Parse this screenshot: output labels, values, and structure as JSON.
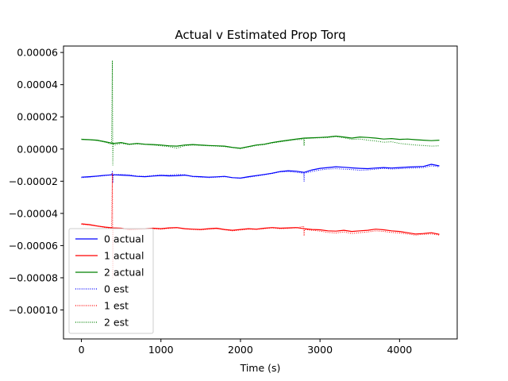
{
  "chart_data": {
    "type": "line",
    "title": "Actual v Estimated Prop Torq",
    "xlabel": "Time (s)",
    "ylabel": "",
    "xlim": [
      -225,
      4725
    ],
    "ylim": [
      -0.000118,
      6.4e-05
    ],
    "x_ticks": [
      0,
      1000,
      2000,
      3000,
      4000
    ],
    "x_tick_labels": [
      "0",
      "1000",
      "2000",
      "3000",
      "4000"
    ],
    "y_ticks": [
      6e-05,
      4e-05,
      2e-05,
      0.0,
      -2e-05,
      -4e-05,
      -6e-05,
      -8e-05,
      -0.0001
    ],
    "y_tick_labels": [
      "0.00006",
      "0.00004",
      "0.00002",
      "0.00000",
      "−0.00002",
      "−0.00004",
      "−0.00006",
      "−0.00008",
      "−0.00010"
    ],
    "grid": false,
    "legend_position": "lower-left",
    "series": [
      {
        "name": "0 actual",
        "color": "#0000ff",
        "style": "solid",
        "x": [
          0,
          100,
          200,
          300,
          400,
          500,
          600,
          700,
          800,
          900,
          1000,
          1100,
          1200,
          1300,
          1400,
          1500,
          1600,
          1700,
          1800,
          1900,
          2000,
          2100,
          2200,
          2300,
          2400,
          2500,
          2600,
          2700,
          2800,
          2900,
          3000,
          3100,
          3200,
          3300,
          3400,
          3500,
          3600,
          3700,
          3800,
          3900,
          4000,
          4100,
          4200,
          4300,
          4400,
          4500
        ],
        "y": [
          -1.75e-05,
          -1.72e-05,
          -1.68e-05,
          -1.63e-05,
          -1.6e-05,
          -1.62e-05,
          -1.65e-05,
          -1.7e-05,
          -1.72e-05,
          -1.68e-05,
          -1.65e-05,
          -1.67e-05,
          -1.66e-05,
          -1.62e-05,
          -1.7e-05,
          -1.72e-05,
          -1.75e-05,
          -1.73e-05,
          -1.7e-05,
          -1.78e-05,
          -1.8e-05,
          -1.72e-05,
          -1.65e-05,
          -1.58e-05,
          -1.5e-05,
          -1.4e-05,
          -1.35e-05,
          -1.38e-05,
          -1.45e-05,
          -1.3e-05,
          -1.2e-05,
          -1.15e-05,
          -1.1e-05,
          -1.13e-05,
          -1.17e-05,
          -1.2e-05,
          -1.22e-05,
          -1.18e-05,
          -1.15e-05,
          -1.18e-05,
          -1.15e-05,
          -1.12e-05,
          -1.1e-05,
          -1.08e-05,
          -9.5e-06,
          -1.05e-05
        ]
      },
      {
        "name": "1 actual",
        "color": "#ff0000",
        "style": "solid",
        "x": [
          0,
          100,
          200,
          300,
          400,
          500,
          600,
          700,
          800,
          900,
          1000,
          1100,
          1200,
          1300,
          1400,
          1500,
          1600,
          1700,
          1800,
          1900,
          2000,
          2100,
          2200,
          2300,
          2400,
          2500,
          2600,
          2700,
          2800,
          2900,
          3000,
          3100,
          3200,
          3300,
          3400,
          3500,
          3600,
          3700,
          3800,
          3900,
          4000,
          4100,
          4200,
          4300,
          4400,
          4500
        ],
        "y": [
          -4.65e-05,
          -4.7e-05,
          -4.78e-05,
          -4.85e-05,
          -4.9e-05,
          -4.92e-05,
          -5e-05,
          -4.98e-05,
          -4.95e-05,
          -4.92e-05,
          -4.95e-05,
          -4.9e-05,
          -4.88e-05,
          -4.95e-05,
          -4.98e-05,
          -5e-05,
          -4.95e-05,
          -4.92e-05,
          -5e-05,
          -5.05e-05,
          -5e-05,
          -4.95e-05,
          -4.98e-05,
          -4.92e-05,
          -4.88e-05,
          -4.92e-05,
          -4.9e-05,
          -4.88e-05,
          -4.95e-05,
          -5e-05,
          -5.02e-05,
          -5.08e-05,
          -5.1e-05,
          -5.05e-05,
          -5.12e-05,
          -5.08e-05,
          -5.05e-05,
          -4.98e-05,
          -5.02e-05,
          -5.08e-05,
          -5.12e-05,
          -5.2e-05,
          -5.28e-05,
          -5.25e-05,
          -5.2e-05,
          -5.3e-05
        ]
      },
      {
        "name": "2 actual",
        "color": "#008000",
        "style": "solid",
        "x": [
          0,
          100,
          200,
          300,
          400,
          500,
          600,
          700,
          800,
          900,
          1000,
          1100,
          1200,
          1300,
          1400,
          1500,
          1600,
          1700,
          1800,
          1900,
          2000,
          2100,
          2200,
          2300,
          2400,
          2500,
          2600,
          2700,
          2800,
          2900,
          3000,
          3100,
          3200,
          3300,
          3400,
          3500,
          3600,
          3700,
          3800,
          3900,
          4000,
          4100,
          4200,
          4300,
          4400,
          4500
        ],
        "y": [
          6e-06,
          5.8e-06,
          5.5e-06,
          4.5e-06,
          3.5e-06,
          4e-06,
          3e-06,
          3.5e-06,
          3e-06,
          2.8e-06,
          2.5e-06,
          2e-06,
          1.8e-06,
          2.5e-06,
          2.8e-06,
          2.5e-06,
          2.2e-06,
          2e-06,
          1.8e-06,
          1e-06,
          5e-07,
          1.5e-06,
          2.5e-06,
          3e-06,
          4e-06,
          4.8e-06,
          5.5e-06,
          6.2e-06,
          6.8e-06,
          7e-06,
          7.2e-06,
          7.5e-06,
          8e-06,
          7.5e-06,
          6.8e-06,
          7.5e-06,
          7.2e-06,
          6.8e-06,
          6.2e-06,
          6.5e-06,
          6e-06,
          6.2e-06,
          5.8e-06,
          5.5e-06,
          5.2e-06,
          5.5e-06
        ]
      },
      {
        "name": "0 est",
        "color": "#0000ff",
        "style": "dotted",
        "x": [
          0,
          100,
          200,
          300,
          380,
          390,
          395,
          400,
          410,
          500,
          600,
          700,
          800,
          900,
          1000,
          1100,
          1200,
          1300,
          1400,
          1500,
          1600,
          1700,
          1800,
          1900,
          2000,
          2100,
          2200,
          2300,
          2400,
          2500,
          2600,
          2700,
          2795,
          2800,
          2805,
          2900,
          3000,
          3100,
          3200,
          3300,
          3400,
          3500,
          3600,
          3700,
          3800,
          3900,
          4000,
          4100,
          4200,
          4300,
          4400,
          4500
        ],
        "y": [
          -1.78e-05,
          -1.75e-05,
          -1.7e-05,
          -1.65e-05,
          -1.6e-05,
          -1.4e-05,
          -2.1e-05,
          -1.65e-05,
          -1.6e-05,
          -1.58e-05,
          -1.6e-05,
          -1.68e-05,
          -1.7e-05,
          -1.65e-05,
          -1.6e-05,
          -1.62e-05,
          -1.58e-05,
          -1.6e-05,
          -1.72e-05,
          -1.75e-05,
          -1.78e-05,
          -1.75e-05,
          -1.72e-05,
          -1.78e-05,
          -1.82e-05,
          -1.75e-05,
          -1.68e-05,
          -1.6e-05,
          -1.52e-05,
          -1.42e-05,
          -1.4e-05,
          -1.45e-05,
          -1.5e-05,
          -2e-05,
          -1.5e-05,
          -1.4e-05,
          -1.3e-05,
          -1.25e-05,
          -1.22e-05,
          -1.25e-05,
          -1.28e-05,
          -1.32e-05,
          -1.3e-05,
          -1.25e-05,
          -1.2e-05,
          -1.25e-05,
          -1.22e-05,
          -1.2e-05,
          -1.18e-05,
          -1.15e-05,
          -1.05e-05,
          -1.1e-05
        ]
      },
      {
        "name": "1 est",
        "color": "#ff0000",
        "style": "dotted",
        "x": [
          0,
          100,
          200,
          300,
          380,
          390,
          395,
          400,
          410,
          500,
          600,
          700,
          800,
          900,
          1000,
          1100,
          1200,
          1300,
          1400,
          1500,
          1600,
          1700,
          1800,
          1900,
          2000,
          2100,
          2200,
          2300,
          2400,
          2500,
          2600,
          2700,
          2795,
          2800,
          2805,
          2900,
          3000,
          3100,
          3200,
          3300,
          3400,
          3500,
          3600,
          3700,
          3800,
          3900,
          4000,
          4100,
          4200,
          4300,
          4400,
          4500
        ],
        "y": [
          -4.68e-05,
          -4.72e-05,
          -4.8e-05,
          -4.88e-05,
          -4.92e-05,
          -1.5e-05,
          -8e-05,
          -4.92e-05,
          -4.95e-05,
          -4.95e-05,
          -5.02e-05,
          -5e-05,
          -4.98e-05,
          -4.95e-05,
          -4.98e-05,
          -4.93e-05,
          -4.9e-05,
          -4.97e-05,
          -5e-05,
          -5.02e-05,
          -4.98e-05,
          -4.95e-05,
          -5.02e-05,
          -5.08e-05,
          -5.03e-05,
          -4.98e-05,
          -5e-05,
          -4.95e-05,
          -4.9e-05,
          -4.95e-05,
          -4.93e-05,
          -4.9e-05,
          -4.8e-05,
          -5.4e-05,
          -5e-05,
          -5.05e-05,
          -5.1e-05,
          -5.18e-05,
          -5.22e-05,
          -5.15e-05,
          -5.25e-05,
          -5.2e-05,
          -5.15e-05,
          -5.08e-05,
          -5.12e-05,
          -5.18e-05,
          -5.22e-05,
          -5.28e-05,
          -5.35e-05,
          -5.3e-05,
          -5.28e-05,
          -5.35e-05
        ]
      },
      {
        "name": "2 est",
        "color": "#008000",
        "style": "dotted",
        "x": [
          0,
          100,
          200,
          300,
          380,
          390,
          395,
          400,
          410,
          500,
          600,
          700,
          800,
          900,
          1000,
          1100,
          1200,
          1300,
          1400,
          1500,
          1600,
          1700,
          1800,
          1900,
          2000,
          2100,
          2200,
          2300,
          2400,
          2500,
          2600,
          2700,
          2795,
          2800,
          2805,
          2900,
          3000,
          3100,
          3200,
          3300,
          3400,
          3500,
          3600,
          3700,
          3800,
          3900,
          4000,
          4100,
          4200,
          4300,
          4400,
          4500
        ],
        "y": [
          6.2e-06,
          5.8e-06,
          5.2e-06,
          4.2e-06,
          3e-06,
          5.5e-05,
          -1e-05,
          3.5e-06,
          2.5e-06,
          3.5e-06,
          2.8e-06,
          3.2e-06,
          2.8e-06,
          2.5e-06,
          2e-06,
          1.5e-06,
          5e-07,
          2e-06,
          2.5e-06,
          2.2e-06,
          2e-06,
          1.8e-06,
          1.5e-06,
          8e-07,
          2e-07,
          1.2e-06,
          2.2e-06,
          2.8e-06,
          3.8e-06,
          4.5e-06,
          5.2e-06,
          5.8e-06,
          6e-06,
          2e-06,
          6.5e-06,
          6.8e-06,
          7e-06,
          7.2e-06,
          7.8e-06,
          7e-06,
          6e-06,
          6.2e-06,
          5.5e-06,
          5e-06,
          4.2e-06,
          4.5e-06,
          3.5e-06,
          3e-06,
          2.5e-06,
          2.2e-06,
          1.8e-06,
          2e-06
        ]
      }
    ]
  }
}
